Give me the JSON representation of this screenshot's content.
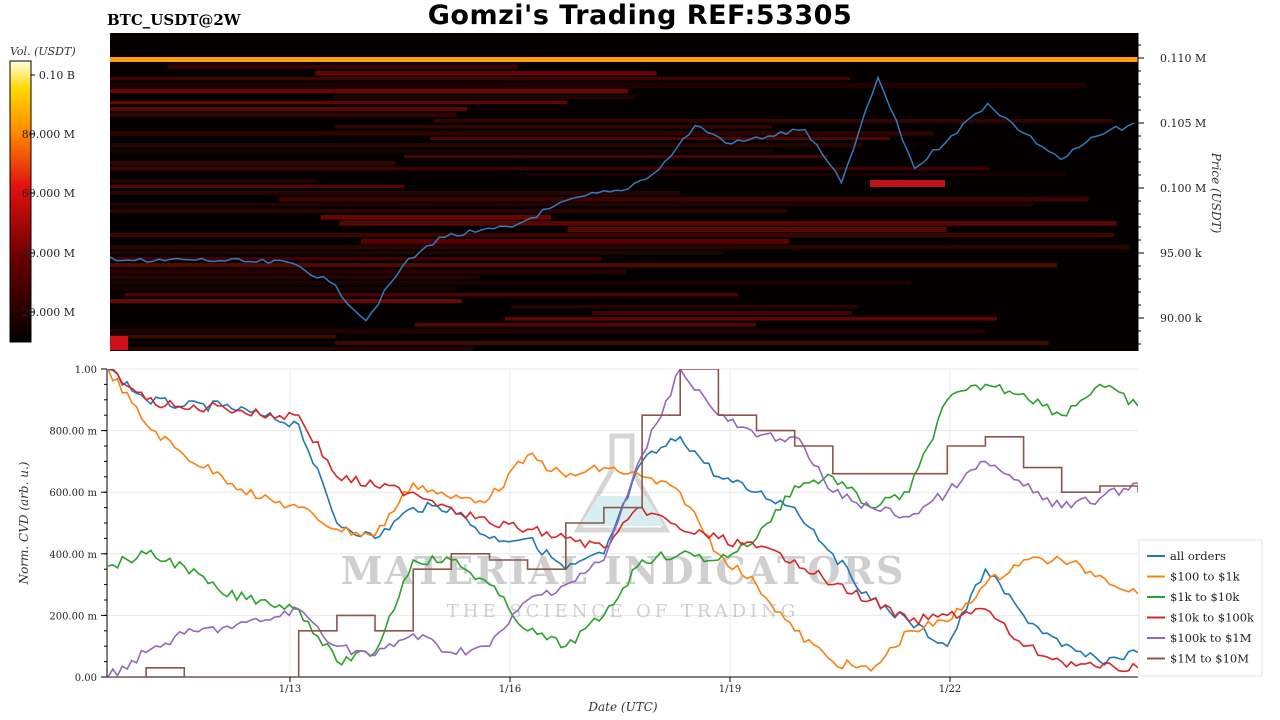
{
  "header": {
    "title": "Gomzi's Trading REF:53305",
    "pair": "BTC_USDT@2W"
  },
  "heatmap_panel": {
    "colorbar_label": "Vol. (USDT)",
    "colorbar_ticks": [
      "0.10 B",
      "80.000 M",
      "60.000 M",
      "40.000 M",
      "20.000 M"
    ],
    "price_axis_label": "Price (USDT)",
    "price_ticks": [
      "0.110 M",
      "0.105 M",
      "0.100 M",
      "95.00 k",
      "90.00 k"
    ]
  },
  "cvd_panel": {
    "ylabel": "Norm. CVD (arb. u.)",
    "xlabel": "Date (UTC)",
    "yticks": [
      "1.00",
      "800.00 m",
      "600.00 m",
      "400.00 m",
      "200.00 m",
      "0.00"
    ],
    "xticks": [
      "1/13",
      "1/16",
      "1/19",
      "1/22"
    ]
  },
  "watermark": {
    "brand": "MATERIAL INDICATORS",
    "tagline": "THE SCIENCE OF TRADING"
  },
  "colors": {
    "price_line": "#2f7bbf",
    "all_orders": "#1f77b4",
    "usd_100_1k": "#ff7f0e",
    "usd_1k_10k": "#2ca02c",
    "usd_10k_100k": "#d62728",
    "usd_100k_1m": "#9467bd",
    "usd_1m_10m": "#8c564b"
  },
  "chart_data": [
    {
      "type": "heatmap",
      "title": "BTC_USDT@2W",
      "ylabel": "Price (USDT)",
      "ylim": [
        87500,
        113000
      ],
      "colorbar_range": [
        0,
        105000000
      ],
      "price_series": {
        "name": "",
        "x": [
          "1/10",
          "1/10.5",
          "1/11",
          "1/11.5",
          "1/12",
          "1/12.5",
          "1/13",
          "1/13.5",
          "1/14",
          "1/14.5",
          "1/15",
          "1/15.5",
          "1/16",
          "1/16.5",
          "1/17",
          "1/17.5",
          "1/18",
          "1/18.5",
          "1/19",
          "1/19.5",
          "1/20",
          "1/20.5",
          "1/21",
          "1/21.5",
          "1/22",
          "1/22.5",
          "1/23",
          "1/23.5",
          "1/24"
        ],
        "values": [
          94700,
          94300,
          94500,
          94400,
          94300,
          94200,
          92800,
          89800,
          94000,
          96200,
          96600,
          97000,
          98400,
          99400,
          99800,
          101400,
          104800,
          103400,
          104000,
          104500,
          100400,
          108500,
          101500,
          104000,
          106500,
          104200,
          102200,
          104000,
          105000
        ]
      }
    },
    {
      "type": "line",
      "xlabel": "Date (UTC)",
      "ylabel": "Norm. CVD (arb. u.)",
      "ylim": [
        0,
        1
      ],
      "legend": "right",
      "x": [
        "1/10.3",
        "1/11",
        "1/11.5",
        "1/12",
        "1/12.5",
        "1/13",
        "1/13.5",
        "1/14",
        "1/14.5",
        "1/15",
        "1/15.5",
        "1/16",
        "1/16.5",
        "1/17",
        "1/17.5",
        "1/18",
        "1/18.5",
        "1/19",
        "1/19.5",
        "1/20",
        "1/20.5",
        "1/21",
        "1/21.5",
        "1/22",
        "1/22.5",
        "1/23",
        "1/23.5",
        "1/24"
      ],
      "series": [
        {
          "name": "all orders",
          "values": [
            1.0,
            0.9,
            0.88,
            0.88,
            0.85,
            0.82,
            0.5,
            0.45,
            0.55,
            0.55,
            0.45,
            0.45,
            0.35,
            0.4,
            0.7,
            0.78,
            0.65,
            0.6,
            0.55,
            0.4,
            0.25,
            0.18,
            0.1,
            0.35,
            0.2,
            0.1,
            0.05,
            0.08
          ]
        },
        {
          "name": "$100 to $1k",
          "values": [
            1.0,
            0.82,
            0.72,
            0.65,
            0.58,
            0.55,
            0.48,
            0.46,
            0.63,
            0.58,
            0.58,
            0.72,
            0.65,
            0.68,
            0.65,
            0.6,
            0.4,
            0.3,
            0.15,
            0.05,
            0.02,
            0.15,
            0.18,
            0.3,
            0.38,
            0.38,
            0.33,
            0.27
          ]
        },
        {
          "name": "$1k to $10k",
          "values": [
            0.36,
            0.4,
            0.36,
            0.27,
            0.25,
            0.22,
            0.05,
            0.08,
            0.38,
            0.38,
            0.3,
            0.15,
            0.1,
            0.2,
            0.38,
            0.4,
            0.38,
            0.45,
            0.62,
            0.65,
            0.55,
            0.6,
            0.9,
            0.95,
            0.92,
            0.85,
            0.95,
            0.88
          ]
        },
        {
          "name": "$10k to $100k",
          "values": [
            1.0,
            0.9,
            0.87,
            0.88,
            0.85,
            0.85,
            0.65,
            0.62,
            0.6,
            0.55,
            0.5,
            0.48,
            0.45,
            0.42,
            0.55,
            0.48,
            0.45,
            0.42,
            0.38,
            0.3,
            0.25,
            0.18,
            0.2,
            0.22,
            0.1,
            0.05,
            0.03,
            0.03
          ]
        },
        {
          "name": "$100k to $1M",
          "values": [
            0.0,
            0.08,
            0.14,
            0.16,
            0.18,
            0.22,
            0.1,
            0.07,
            0.14,
            0.08,
            0.1,
            0.25,
            0.3,
            0.38,
            0.72,
            1.0,
            0.85,
            0.78,
            0.78,
            0.6,
            0.55,
            0.52,
            0.6,
            0.7,
            0.62,
            0.55,
            0.58,
            0.63
          ]
        },
        {
          "name": "$1M to $10M",
          "values": [
            0.0,
            0.03,
            0.0,
            0.0,
            0.0,
            0.15,
            0.2,
            0.15,
            0.35,
            0.4,
            0.38,
            0.35,
            0.5,
            0.55,
            0.85,
            1.0,
            0.85,
            0.8,
            0.75,
            0.66,
            0.66,
            0.66,
            0.75,
            0.78,
            0.68,
            0.6,
            0.62,
            0.6
          ]
        }
      ]
    }
  ]
}
